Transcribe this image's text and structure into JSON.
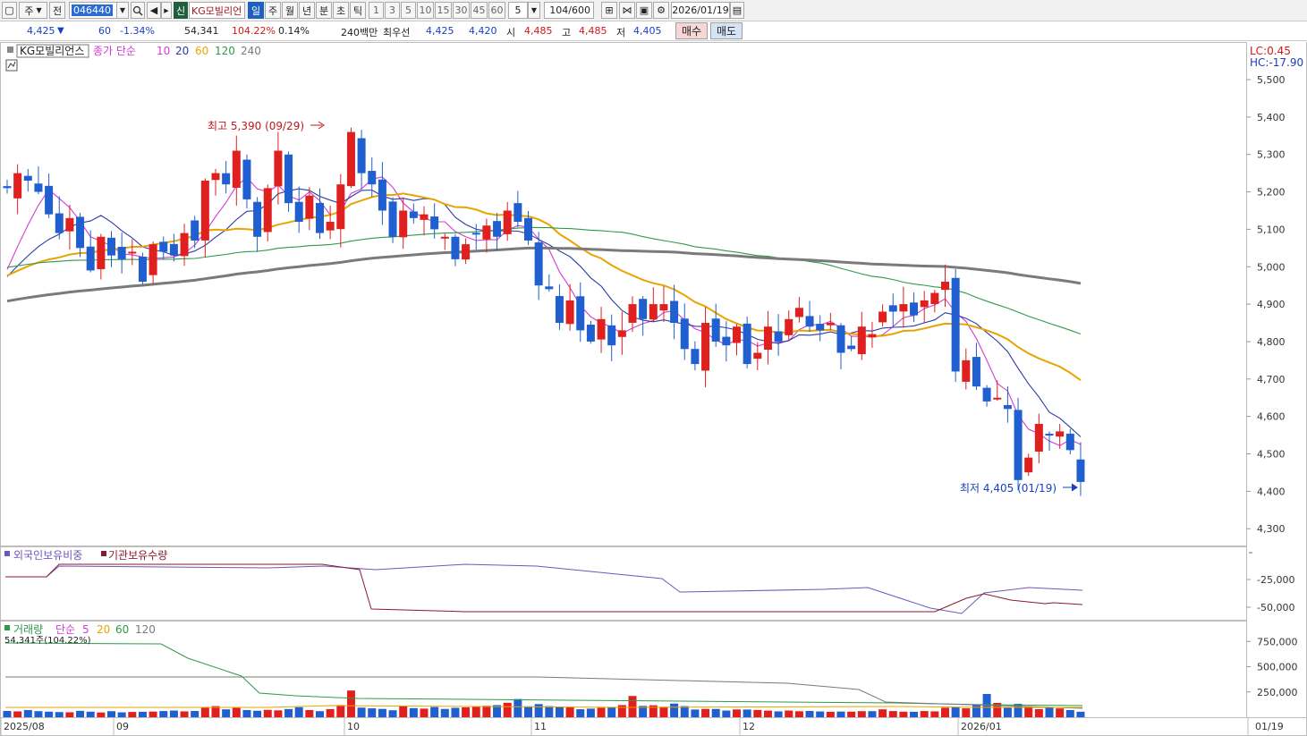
{
  "toolbar": {
    "type_label": "주",
    "jeon_label": "전",
    "code": "046440",
    "shin_label": "신",
    "stock_name": "KG모빌리언",
    "periods": [
      "일",
      "주",
      "월",
      "년",
      "분",
      "초",
      "틱"
    ],
    "active_period": "일",
    "intervals": [
      "1",
      "3",
      "5",
      "10",
      "15",
      "30",
      "45",
      "60"
    ],
    "unit_value": "5",
    "count": "104/600",
    "date": "2026/01/19"
  },
  "quote": {
    "price": "4,425",
    "change_arrow": "▼",
    "change": "60",
    "change_pct": "-1.34%",
    "volume": "54,341",
    "volume_pct": "104.22%",
    "turnover_pct": "0.14%",
    "trade_value": "240백만",
    "ask_label": "최우선",
    "ask": "4,425",
    "bid": "4,420",
    "open_label": "시",
    "open": "4,485",
    "high_label": "고",
    "high": "4,485",
    "low_label": "저",
    "low": "4,405",
    "buy_label": "매수",
    "sell_label": "매도"
  },
  "colors": {
    "up": "#e01f1f",
    "down": "#1f5fd0",
    "ma5": "#d23cd2",
    "ma10": "#2a3aa6",
    "ma20": "#e8a400",
    "ma60": "#2e9a48",
    "ma120": "#7a7a7a",
    "foreign": "#7056b8",
    "inst": "#8a1a30"
  },
  "legend": {
    "name": "KG모빌리언스",
    "ma_prefix": "종가 단순",
    "periods": [
      "10",
      "20",
      "60",
      "120",
      "240"
    ]
  },
  "lc_label": "LC:0.45",
  "hc_label": "HC:-17.90",
  "annotations": {
    "high_label": "최고 5,390 (09/29)",
    "low_label": "최저 4,405 (01/19)"
  },
  "sub1_legend": {
    "foreign": "외국인보유비중",
    "inst": "기관보유수량"
  },
  "sub2_legend": {
    "title": "거래량",
    "ma_prefix": "단순",
    "periods": [
      "5",
      "20",
      "60",
      "120"
    ],
    "value_label": "54,341주(104.22%)"
  },
  "date_axis": [
    "2025/08",
    "09",
    "10",
    "11",
    "12",
    "2026/01"
  ],
  "date_current": "01/19",
  "chart_data": {
    "type": "candlestick",
    "x_start": "2025-08-07",
    "x_end": "2026-01-19",
    "price_ticks": [
      "5,500",
      "5,400",
      "5,300",
      "5,200",
      "5,100",
      "5,000",
      "4,900",
      "4,800",
      "4,700",
      "4,600",
      "4,500",
      "4,400",
      "4,300"
    ],
    "price_ylim": [
      4250,
      5600
    ],
    "closes": [
      5210,
      5250,
      5230,
      5200,
      5140,
      5090,
      5130,
      5050,
      4990,
      5080,
      5030,
      5020,
      5040,
      4960,
      5060,
      5040,
      5030,
      5090,
      5070,
      5230,
      5250,
      5220,
      5310,
      5180,
      5080,
      5210,
      5310,
      5170,
      5120,
      5190,
      5090,
      5120,
      5220,
      5360,
      5250,
      5220,
      5150,
      5080,
      5150,
      5130,
      5140,
      5100,
      5080,
      5020,
      5060,
      5090,
      5110,
      5080,
      5150,
      5120,
      5070,
      4950,
      4940,
      4850,
      4910,
      4830,
      4800,
      4860,
      4790,
      4830,
      4900,
      4860,
      4900,
      4900,
      4850,
      4780,
      4740,
      4850,
      4800,
      4790,
      4840,
      4740,
      4770,
      4840,
      4800,
      4860,
      4890,
      4840,
      4830,
      4850,
      4770,
      4780,
      4840,
      4820,
      4880,
      4880,
      4900,
      4870,
      4910,
      4930,
      4960,
      4720,
      4750,
      4680,
      4640,
      4650,
      4620,
      4430,
      4490,
      4580,
      4550,
      4560,
      4510,
      4425
    ],
    "ma_periods": [
      5,
      10,
      20,
      60,
      120
    ],
    "high": {
      "value": 5390,
      "date": "09/29"
    },
    "low": {
      "value": 4405,
      "date": "01/19"
    },
    "holdings": {
      "foreign_ticks": [
        "-25,000",
        "-50,000"
      ],
      "series": [
        {
          "name": "외국인보유비중"
        },
        {
          "name": "기관보유수량"
        }
      ]
    },
    "volume": {
      "ticks": [
        "750,000",
        "500,000",
        "250,000"
      ],
      "ylim": [
        0,
        850000
      ],
      "values": [
        62000,
        58000,
        71000,
        60000,
        55000,
        51000,
        49000,
        63000,
        55000,
        47000,
        60000,
        48000,
        52000,
        54000,
        56000,
        61000,
        66000,
        58000,
        62000,
        96000,
        110000,
        78000,
        92000,
        71000,
        64000,
        73000,
        68000,
        81000,
        99000,
        71000,
        60000,
        80000,
        120000,
        264000,
        95000,
        88000,
        82000,
        69000,
        113000,
        90000,
        85000,
        101000,
        82000,
        93000,
        98000,
        108000,
        113000,
        120000,
        143000,
        180000,
        108000,
        130000,
        110000,
        106000,
        98000,
        79000,
        85000,
        93000,
        97000,
        120000,
        210000,
        112000,
        118000,
        103000,
        135000,
        110000,
        76000,
        82000,
        82000,
        66000,
        77000,
        76000,
        72000,
        65000,
        58000,
        66000,
        59000,
        62000,
        57000,
        54000,
        56000,
        55000,
        60000,
        60000,
        78000,
        61000,
        55000,
        54000,
        61000,
        58000,
        94000,
        102000,
        88000,
        125000,
        230000,
        142000,
        95000,
        132000,
        108000,
        80000,
        102000,
        87000,
        71000,
        54341
      ]
    }
  }
}
